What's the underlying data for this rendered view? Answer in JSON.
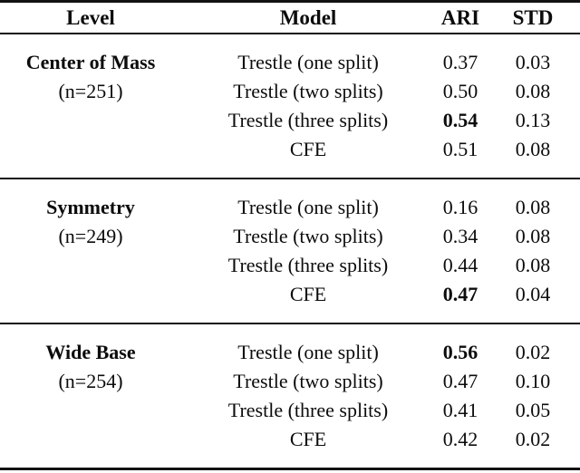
{
  "page": {
    "background": "#ffffff",
    "text_color": "#0c0c0c",
    "rule_color": "#121212"
  },
  "table": {
    "headers": {
      "level": "Level",
      "model": "Model",
      "ari": "ARI",
      "std": "STD"
    },
    "groups": [
      {
        "level": "Center of Mass",
        "n": "(n=251)",
        "rows": [
          {
            "model": "Trestle (one split)",
            "ari": "0.37",
            "std": "0.03",
            "ari_bold": false
          },
          {
            "model": "Trestle (two splits)",
            "ari": "0.50",
            "std": "0.08",
            "ari_bold": false
          },
          {
            "model": "Trestle (three splits)",
            "ari": "0.54",
            "std": "0.13",
            "ari_bold": true
          },
          {
            "model": "CFE",
            "ari": "0.51",
            "std": "0.08",
            "ari_bold": false
          }
        ]
      },
      {
        "level": "Symmetry",
        "n": "(n=249)",
        "rows": [
          {
            "model": "Trestle (one split)",
            "ari": "0.16",
            "std": "0.08",
            "ari_bold": false
          },
          {
            "model": "Trestle (two splits)",
            "ari": "0.34",
            "std": "0.08",
            "ari_bold": false
          },
          {
            "model": "Trestle (three splits)",
            "ari": "0.44",
            "std": "0.08",
            "ari_bold": false
          },
          {
            "model": "CFE",
            "ari": "0.47",
            "std": "0.04",
            "ari_bold": true
          }
        ]
      },
      {
        "level": "Wide Base",
        "n": "(n=254)",
        "rows": [
          {
            "model": "Trestle (one split)",
            "ari": "0.56",
            "std": "0.02",
            "ari_bold": true
          },
          {
            "model": "Trestle (two splits)",
            "ari": "0.47",
            "std": "0.10",
            "ari_bold": false
          },
          {
            "model": "Trestle (three splits)",
            "ari": "0.41",
            "std": "0.05",
            "ari_bold": false
          },
          {
            "model": "CFE",
            "ari": "0.42",
            "std": "0.02",
            "ari_bold": false
          }
        ]
      }
    ]
  }
}
